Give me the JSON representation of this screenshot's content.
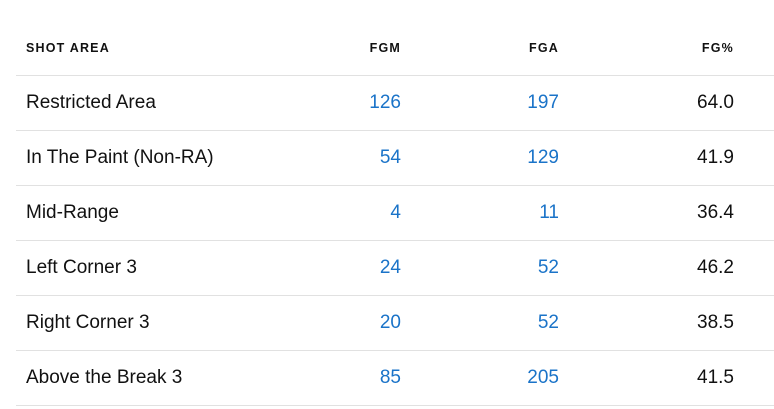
{
  "table": {
    "headers": {
      "area": "SHOT AREA",
      "fgm": "FGM",
      "fga": "FGA",
      "pct": "FG%"
    },
    "rows": [
      {
        "area": "Restricted Area",
        "fgm": "126",
        "fga": "197",
        "pct": "64.0"
      },
      {
        "area": "In The Paint (Non-RA)",
        "fgm": "54",
        "fga": "129",
        "pct": "41.9"
      },
      {
        "area": "Mid-Range",
        "fgm": "4",
        "fga": "11",
        "pct": "36.4"
      },
      {
        "area": "Left Corner 3",
        "fgm": "24",
        "fga": "52",
        "pct": "46.2"
      },
      {
        "area": "Right Corner 3",
        "fgm": "20",
        "fga": "52",
        "pct": "38.5"
      },
      {
        "area": "Above the Break 3",
        "fgm": "85",
        "fga": "205",
        "pct": "41.5"
      }
    ]
  },
  "colors": {
    "link": "#1a73c8",
    "text": "#111111",
    "divider": "#e1e1e1"
  }
}
